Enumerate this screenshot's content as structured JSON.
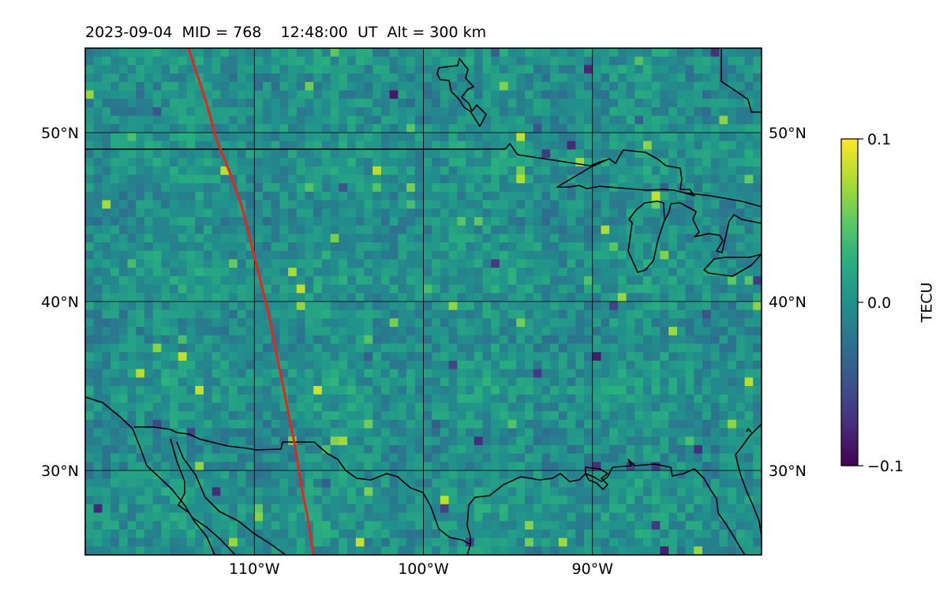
{
  "title": "2023-09-04  MID = 768    12:48:00  UT  Alt = 300 km",
  "map": {
    "lon_range": [
      -120,
      -80
    ],
    "lat_range": [
      25,
      55
    ],
    "lon_ticks": [
      {
        "value": -110,
        "label": "110°W"
      },
      {
        "value": -100,
        "label": "100°W"
      },
      {
        "value": -90,
        "label": "90°W"
      }
    ],
    "lat_ticks": [
      {
        "value": 50,
        "label": "50°N"
      },
      {
        "value": 40,
        "label": "40°N"
      },
      {
        "value": 30,
        "label": "30°N"
      }
    ],
    "grid": true,
    "cell_size_deg": 0.5,
    "background_field": "TEC perturbation map (viridis), near zero with small-scale noise",
    "field_seed": 7,
    "colors": {
      "trajectory": "#e8241c",
      "coastline": "#000000",
      "gridline": "#000000"
    }
  },
  "trajectory": {
    "description": "red track",
    "points": [
      {
        "lon": -113.9,
        "lat": 55.0
      },
      {
        "lon": -112.9,
        "lat": 52.0
      },
      {
        "lon": -112.2,
        "lat": 49.5
      },
      {
        "lon": -111.4,
        "lat": 47.5
      },
      {
        "lon": -110.7,
        "lat": 45.5
      },
      {
        "lon": -110.2,
        "lat": 43.5
      },
      {
        "lon": -109.7,
        "lat": 41.5
      },
      {
        "lon": -109.2,
        "lat": 39.5
      },
      {
        "lon": -108.8,
        "lat": 37.5
      },
      {
        "lon": -108.4,
        "lat": 35.5
      },
      {
        "lon": -108.0,
        "lat": 33.5
      },
      {
        "lon": -107.6,
        "lat": 31.5
      },
      {
        "lon": -107.2,
        "lat": 29.0
      },
      {
        "lon": -106.8,
        "lat": 27.0
      },
      {
        "lon": -106.5,
        "lat": 25.0
      }
    ]
  },
  "colorbar": {
    "label": "TECU",
    "min": -0.1,
    "max": 0.1,
    "ticks": [
      {
        "value": 0.1,
        "label": "0.1"
      },
      {
        "value": 0.0,
        "label": "0.0"
      },
      {
        "value": -0.1,
        "label": "−0.1"
      }
    ],
    "colormap": "viridis"
  }
}
